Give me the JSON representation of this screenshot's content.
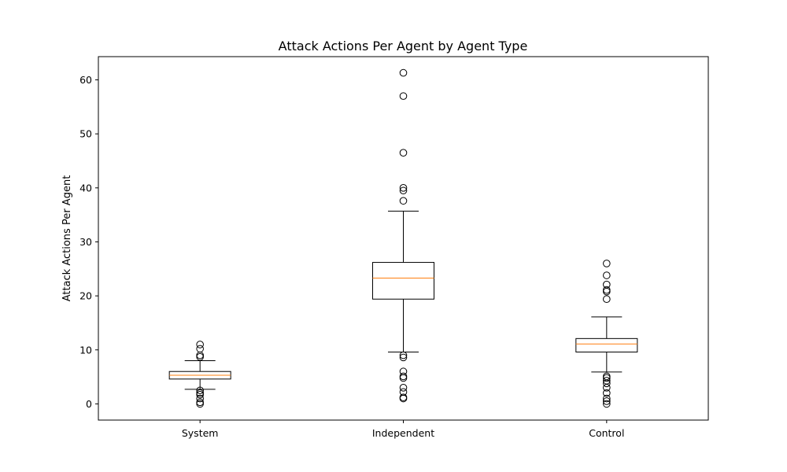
{
  "chart_data": {
    "type": "box",
    "title": "Attack Actions Per Agent by Agent Type",
    "xlabel": "",
    "ylabel": "Attack Actions Per Agent",
    "ylim": [
      -3,
      64.3
    ],
    "yticks": [
      0,
      10,
      20,
      30,
      40,
      50,
      60
    ],
    "grid": false,
    "colors": {
      "box": "#000000",
      "median": "#ff7f0e",
      "flier": "#000000"
    },
    "categories": [
      "System",
      "Independent",
      "Control"
    ],
    "boxes": [
      {
        "category": "System",
        "whisker_low": 2.7,
        "q1": 4.6,
        "median": 5.3,
        "q3": 6.0,
        "whisker_high": 8.0,
        "fliers": [
          0,
          0.3,
          1.0,
          1.7,
          2.0,
          2.5,
          8.7,
          9.0,
          10.2,
          11.0
        ]
      },
      {
        "category": "Independent",
        "whisker_low": 9.6,
        "q1": 19.4,
        "median": 23.3,
        "q3": 26.2,
        "whisker_high": 35.7,
        "fliers": [
          1.0,
          1.2,
          2.2,
          3.0,
          4.8,
          5.1,
          6.0,
          8.6,
          9.0,
          37.6,
          39.5,
          40.0,
          46.5,
          57.0,
          61.3
        ]
      },
      {
        "category": "Control",
        "whisker_low": 5.9,
        "q1": 9.6,
        "median": 11.1,
        "q3": 12.1,
        "whisker_high": 16.1,
        "fliers": [
          0,
          0.5,
          1.0,
          2.0,
          3.0,
          3.8,
          4.3,
          4.8,
          5.1,
          19.4,
          20.8,
          21.1,
          22.1,
          23.8,
          26.0
        ]
      }
    ]
  }
}
